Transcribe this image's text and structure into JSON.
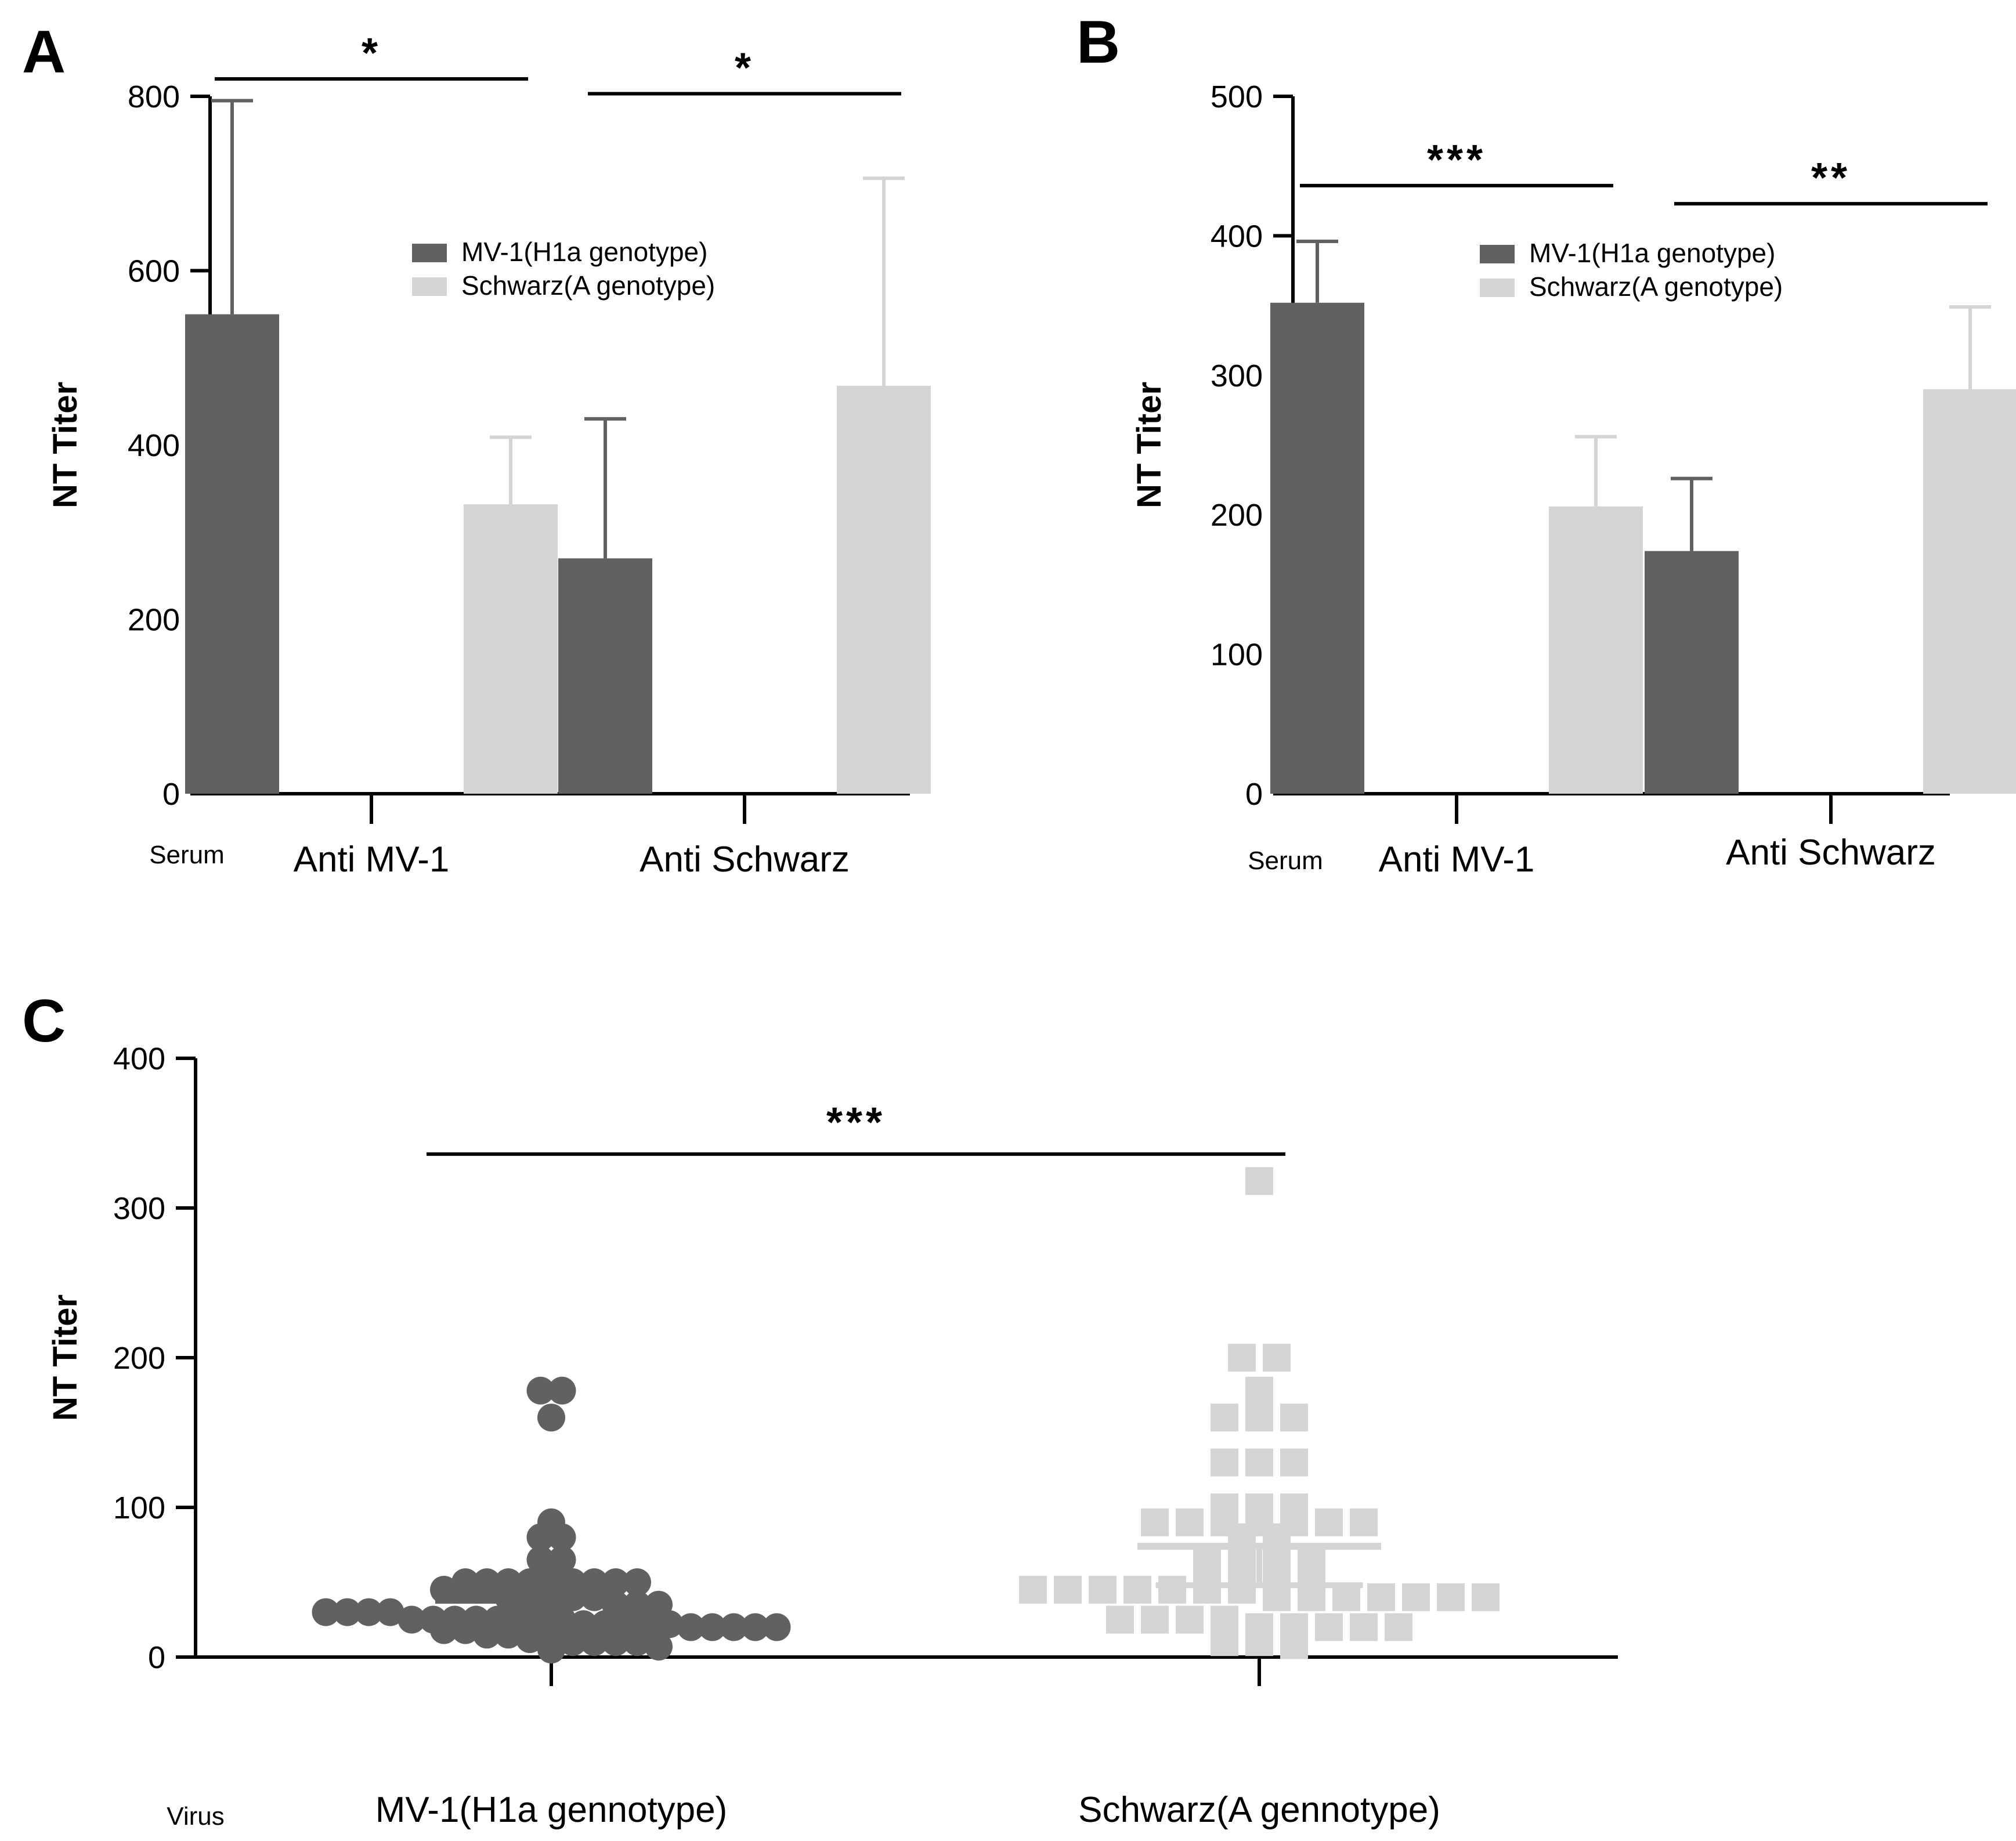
{
  "colors": {
    "dark": "#616161",
    "light": "#d4d4d4",
    "axis": "#000000"
  },
  "chart_data": [
    {
      "panel": "A",
      "type": "bar",
      "ylabel": "NT Titer",
      "group_label": "Serum",
      "categories": [
        "Anti MV-1",
        "Anti Schwarz"
      ],
      "ylim": [
        0,
        800
      ],
      "yticks": [
        0,
        200,
        400,
        600,
        800
      ],
      "legend": {
        "placement": "top-center"
      },
      "series": [
        {
          "name": "MV-1(H1a genotype)",
          "color_key": "dark",
          "values": [
            550,
            270
          ],
          "errors": [
            245,
            160
          ]
        },
        {
          "name": "Schwarz(A genotype)",
          "color_key": "light",
          "values": [
            332,
            468
          ],
          "errors": [
            77,
            238
          ]
        }
      ],
      "significance": [
        {
          "category_index": 0,
          "label": "*",
          "y": 820
        },
        {
          "category_index": 1,
          "label": "*",
          "y": 803
        }
      ]
    },
    {
      "panel": "B",
      "type": "bar",
      "ylabel": "NT Titer",
      "group_label": "Serum",
      "categories": [
        "Anti MV-1",
        "Anti Schwarz"
      ],
      "ylim": [
        0,
        500
      ],
      "yticks": [
        0,
        100,
        200,
        300,
        400,
        500
      ],
      "legend": {
        "placement": "top-center"
      },
      "series": [
        {
          "name": "MV-1(H1a genotype)",
          "color_key": "dark",
          "values": [
            352,
            174
          ],
          "errors": [
            44,
            52
          ]
        },
        {
          "name": "Schwarz(A genotype)",
          "color_key": "light",
          "values": [
            206,
            290
          ],
          "errors": [
            50,
            59
          ]
        }
      ],
      "significance": [
        {
          "category_index": 0,
          "label": "***",
          "y": 436
        },
        {
          "category_index": 1,
          "label": "**",
          "y": 423
        }
      ]
    },
    {
      "panel": "C",
      "type": "scatter",
      "ylabel": "NT Titer",
      "group_label": "Virus",
      "categories": [
        "MV-1(H1a gennotype)",
        "Schwarz(A gennotype)"
      ],
      "ylim": [
        0,
        400
      ],
      "yticks": [
        0,
        100,
        200,
        300,
        400
      ],
      "significance": [
        {
          "between": [
            0,
            1
          ],
          "label": "***",
          "y": 336
        }
      ],
      "series": [
        {
          "name": "MV-1(H1a gennotype)",
          "color_key": "dark",
          "marker": "circle",
          "mean": 38,
          "sd_low": 25,
          "sd_high": 50,
          "values": [
            178,
            178,
            160,
            90,
            80,
            80,
            65,
            65,
            50,
            50,
            50,
            50,
            50,
            50,
            50,
            50,
            50,
            45,
            45,
            45,
            40,
            40,
            40,
            40,
            40,
            35,
            35,
            35,
            30,
            30,
            30,
            30,
            25,
            25,
            25,
            25,
            25,
            25,
            25,
            25,
            22,
            22,
            22,
            22,
            22,
            20,
            20,
            20,
            20,
            20,
            18,
            18,
            15,
            15,
            12,
            12,
            10,
            10,
            10,
            10,
            7,
            5
          ]
        },
        {
          "name": "Schwarz(A gennotype)",
          "color_key": "light",
          "marker": "square",
          "mean": 74,
          "sd_low": 48,
          "sd_high": 74,
          "values": [
            318,
            200,
            200,
            178,
            160,
            160,
            160,
            130,
            130,
            130,
            100,
            100,
            100,
            90,
            90,
            90,
            90,
            90,
            90,
            90,
            80,
            80,
            65,
            65,
            65,
            65,
            50,
            50,
            50,
            50,
            45,
            45,
            45,
            45,
            45,
            45,
            45,
            40,
            40,
            40,
            40,
            40,
            40,
            40,
            25,
            25,
            25,
            25,
            20,
            20,
            20,
            20,
            20,
            10,
            10,
            8
          ]
        }
      ]
    }
  ]
}
